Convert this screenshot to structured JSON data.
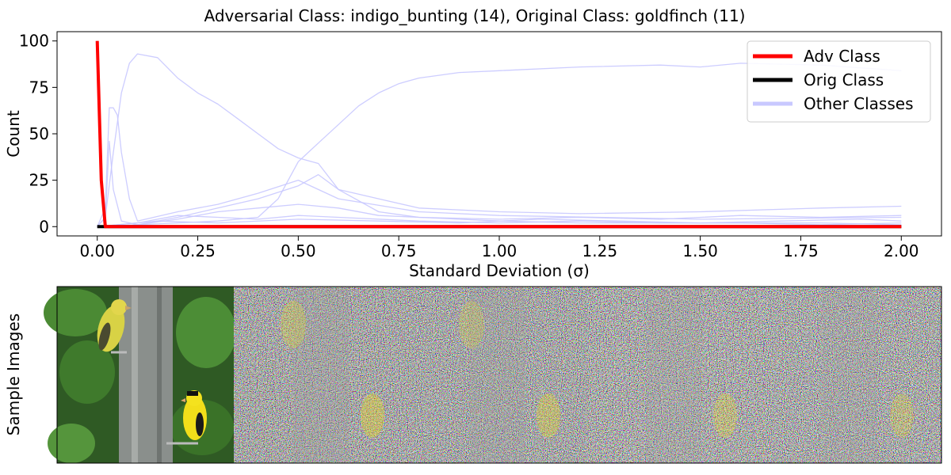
{
  "chart_data": {
    "type": "line",
    "title": "Adversarial Class: indigo_bunting (14), Original Class: goldfinch (11)",
    "xlabel": "Standard Deviation (σ)",
    "ylabel": "Count",
    "xlim": [
      -0.1,
      2.1
    ],
    "ylim": [
      -5,
      105
    ],
    "xticks": [
      0.0,
      0.25,
      0.5,
      0.75,
      1.0,
      1.25,
      1.5,
      1.75,
      2.0
    ],
    "xtick_labels": [
      "0.00",
      "0.25",
      "0.50",
      "0.75",
      "1.00",
      "1.25",
      "1.50",
      "1.75",
      "2.00"
    ],
    "yticks": [
      0,
      25,
      50,
      75,
      100
    ],
    "ytick_labels": [
      "0",
      "25",
      "50",
      "75",
      "100"
    ],
    "grid": false,
    "legend_position": "top-right",
    "legend": [
      {
        "label": "Adv Class",
        "color": "#ff0000"
      },
      {
        "label": "Orig Class",
        "color": "#000000"
      },
      {
        "label": "Other Classes",
        "color": "#c8c8ff"
      }
    ],
    "series": [
      {
        "name": "Adv Class",
        "color": "#ff0000",
        "x": [
          0.0,
          0.01,
          0.02,
          0.04,
          2.0
        ],
        "y": [
          100,
          25,
          0,
          0,
          0
        ]
      },
      {
        "name": "Orig Class",
        "color": "#000000",
        "x": [
          0.0,
          0.02,
          2.0
        ],
        "y": [
          0,
          0,
          0
        ]
      },
      {
        "name": "Other Classes",
        "color": "#c8c8ff",
        "x": [
          0.0,
          0.02,
          0.04,
          0.06,
          0.08,
          0.1,
          0.15,
          0.2,
          0.25,
          0.3,
          0.35,
          0.4,
          0.45,
          0.5,
          0.55,
          0.6,
          0.7,
          0.8,
          1.0,
          1.2,
          1.4,
          1.6,
          1.8,
          2.0
        ],
        "y": [
          0,
          5,
          40,
          72,
          88,
          93,
          91,
          80,
          72,
          66,
          58,
          50,
          42,
          37,
          34,
          20,
          8,
          5,
          3,
          2,
          2,
          2,
          2,
          1
        ]
      },
      {
        "name": "Other Classes",
        "color": "#c8c8ff",
        "x": [
          0.0,
          0.05,
          0.1,
          0.2,
          0.3,
          0.4,
          0.45,
          0.5,
          0.55,
          0.6,
          0.65,
          0.7,
          0.75,
          0.8,
          0.9,
          1.0,
          1.2,
          1.4,
          1.5,
          1.6,
          1.8,
          2.0
        ],
        "y": [
          0,
          0,
          1,
          2,
          3,
          5,
          15,
          35,
          45,
          55,
          65,
          72,
          77,
          80,
          83,
          84,
          86,
          87,
          86,
          88,
          87,
          84
        ]
      },
      {
        "name": "Other Classes",
        "color": "#c8c8ff",
        "x": [
          0.0,
          0.02,
          0.03,
          0.04,
          0.05,
          0.06,
          0.08,
          0.1,
          0.2,
          0.3,
          0.4,
          0.5,
          0.6,
          0.8,
          1.0,
          1.5,
          2.0
        ],
        "y": [
          0,
          10,
          64,
          64,
          60,
          40,
          15,
          3,
          8,
          12,
          18,
          25,
          15,
          8,
          6,
          4,
          5
        ]
      },
      {
        "name": "Other Classes",
        "color": "#c8c8ff",
        "x": [
          0.0,
          0.02,
          0.03,
          0.04,
          0.06,
          0.1,
          0.2,
          0.3,
          0.4,
          0.5,
          0.55,
          0.6,
          0.7,
          0.8,
          1.0,
          1.2,
          1.5,
          1.8,
          2.0
        ],
        "y": [
          0,
          5,
          46,
          20,
          3,
          1,
          5,
          10,
          15,
          22,
          28,
          20,
          15,
          10,
          8,
          7,
          8,
          10,
          11
        ]
      },
      {
        "name": "Other Classes",
        "color": "#c8c8ff",
        "x": [
          0.0,
          0.1,
          0.2,
          0.3,
          0.4,
          0.5,
          0.6,
          0.7,
          0.8,
          1.0,
          1.2,
          1.4,
          1.6,
          1.8,
          2.0
        ],
        "y": [
          0,
          1,
          4,
          8,
          10,
          12,
          10,
          6,
          5,
          4,
          5,
          4,
          6,
          5,
          6
        ]
      },
      {
        "name": "Other Classes",
        "color": "#c8c8ff",
        "x": [
          0.0,
          0.1,
          0.2,
          0.3,
          0.4,
          0.5,
          0.6,
          0.8,
          1.0,
          1.2,
          1.4,
          1.6,
          1.8,
          2.0
        ],
        "y": [
          0,
          2,
          6,
          5,
          4,
          6,
          5,
          3,
          2,
          3,
          2,
          2,
          1,
          2
        ]
      },
      {
        "name": "Other Classes",
        "color": "#c8c8ff",
        "x": [
          0.0,
          0.15,
          0.3,
          0.5,
          0.7,
          0.9,
          1.1,
          1.3,
          1.5,
          1.7,
          1.9,
          2.0
        ],
        "y": [
          0,
          3,
          2,
          4,
          3,
          2,
          4,
          3,
          2,
          3,
          4,
          3
        ]
      }
    ]
  },
  "images_panel": {
    "ylabel": "Sample Images",
    "tile_count": 5
  }
}
